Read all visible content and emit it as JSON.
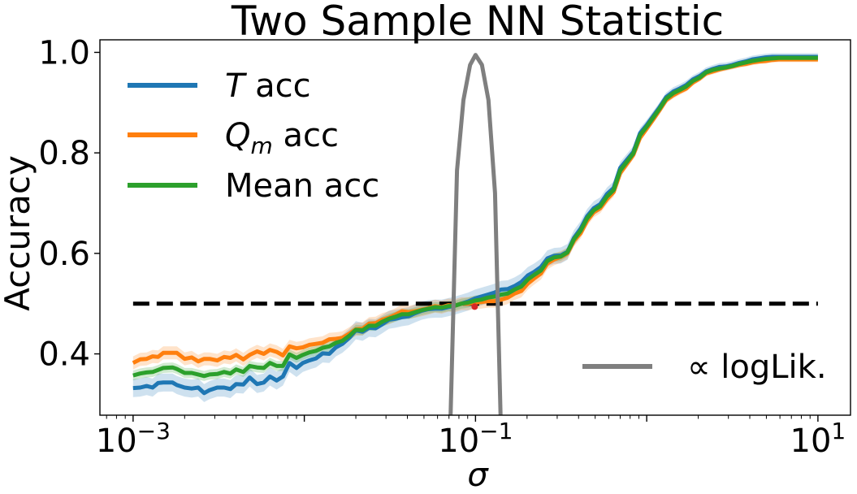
{
  "chart_data": {
    "type": "line",
    "title": "Two Sample NN Statistic",
    "xlabel": "σ",
    "ylabel": "Accuracy",
    "xscale": "log",
    "xlim": [
      0.00064,
      15.5
    ],
    "ylim": [
      0.278,
      1.025
    ],
    "x_ticks": [
      {
        "value": 0.001,
        "base": "10",
        "exp": "−3"
      },
      {
        "value": 0.1,
        "base": "10",
        "exp": "−1"
      },
      {
        "value": 10,
        "base": "10",
        "exp": "1"
      }
    ],
    "y_ticks": [
      {
        "value": 0.4,
        "label": "0.4"
      },
      {
        "value": 0.6,
        "label": "0.6"
      },
      {
        "value": 0.8,
        "label": "0.8"
      },
      {
        "value": 1.0,
        "label": "1.0"
      }
    ],
    "grid": false,
    "legend_placement": "upper-left",
    "colors": {
      "T": "#1f77b4",
      "Qm": "#ff7f0e",
      "Mean": "#2ca02c",
      "loglik": "#7f7f7f",
      "chance": "#000000",
      "marker": "#d62728"
    },
    "series": [
      {
        "name": "T acc",
        "legend": {
          "italic": "T",
          "sub": "",
          "rest": " acc"
        },
        "x": [
          0.001,
          0.0011,
          0.0012,
          0.0013,
          0.0014,
          0.0015,
          0.0017,
          0.0018,
          0.002,
          0.0022,
          0.0024,
          0.0026,
          0.0028,
          0.0031,
          0.0034,
          0.0037,
          0.004,
          0.0044,
          0.0048,
          0.0053,
          0.0058,
          0.0063,
          0.0069,
          0.0075,
          0.0082,
          0.009,
          0.0098,
          0.0107,
          0.0117,
          0.0128,
          0.014,
          0.0153,
          0.0167,
          0.0183,
          0.02,
          0.0219,
          0.0239,
          0.0261,
          0.0285,
          0.0312,
          0.0341,
          0.0372,
          0.0407,
          0.0445,
          0.0486,
          0.0531,
          0.058,
          0.0634,
          0.0693,
          0.0758,
          0.0828,
          0.0905,
          0.0989,
          0.108,
          0.118,
          0.129,
          0.141,
          0.154,
          0.169,
          0.185,
          0.202,
          0.22,
          0.241,
          0.263,
          0.288,
          0.315,
          0.344,
          0.376,
          0.411,
          0.449,
          0.491,
          0.536,
          0.586,
          0.641,
          0.7,
          0.765,
          0.836,
          0.914,
          0.999,
          1.09,
          1.19,
          1.3,
          1.43,
          1.56,
          1.7,
          1.86,
          2.04,
          2.22,
          2.43,
          2.66,
          2.9,
          3.17,
          3.47,
          3.79,
          4.14,
          4.53,
          4.95,
          5.41,
          5.91,
          6.46,
          7.06,
          7.72,
          8.43,
          9.22,
          10.0
        ],
        "values": [
          0.332,
          0.333,
          0.336,
          0.333,
          0.342,
          0.343,
          0.343,
          0.338,
          0.333,
          0.331,
          0.333,
          0.322,
          0.328,
          0.333,
          0.333,
          0.33,
          0.34,
          0.339,
          0.353,
          0.34,
          0.343,
          0.355,
          0.347,
          0.355,
          0.382,
          0.372,
          0.382,
          0.387,
          0.391,
          0.401,
          0.4,
          0.413,
          0.42,
          0.432,
          0.447,
          0.444,
          0.452,
          0.451,
          0.459,
          0.468,
          0.47,
          0.473,
          0.475,
          0.481,
          0.486,
          0.489,
          0.49,
          0.49,
          0.493,
          0.496,
          0.5,
          0.504,
          0.51,
          0.514,
          0.518,
          0.522,
          0.528,
          0.529,
          0.535,
          0.543,
          0.556,
          0.563,
          0.573,
          0.59,
          0.595,
          0.596,
          0.603,
          0.631,
          0.649,
          0.674,
          0.69,
          0.698,
          0.718,
          0.73,
          0.77,
          0.786,
          0.802,
          0.839,
          0.855,
          0.873,
          0.891,
          0.911,
          0.922,
          0.928,
          0.935,
          0.946,
          0.953,
          0.962,
          0.967,
          0.971,
          0.972,
          0.975,
          0.979,
          0.982,
          0.986,
          0.988,
          0.99,
          0.991,
          0.991,
          0.991,
          0.991,
          0.991,
          0.991,
          0.991,
          0.991
        ]
      },
      {
        "name": "Qm acc",
        "legend": {
          "italic": "Q",
          "sub": "m",
          "rest": " acc"
        },
        "x": [
          0.001,
          0.0011,
          0.0012,
          0.0013,
          0.0014,
          0.0015,
          0.0017,
          0.0018,
          0.002,
          0.0022,
          0.0024,
          0.0026,
          0.0028,
          0.0031,
          0.0034,
          0.0037,
          0.004,
          0.0044,
          0.0048,
          0.0053,
          0.0058,
          0.0063,
          0.0069,
          0.0075,
          0.0082,
          0.009,
          0.0098,
          0.0107,
          0.0117,
          0.0128,
          0.014,
          0.0153,
          0.0167,
          0.0183,
          0.02,
          0.0219,
          0.0239,
          0.0261,
          0.0285,
          0.0312,
          0.0341,
          0.0372,
          0.0407,
          0.0445,
          0.0486,
          0.0531,
          0.058,
          0.0634,
          0.0693,
          0.0758,
          0.0828,
          0.0905,
          0.0989,
          0.108,
          0.118,
          0.129,
          0.141,
          0.154,
          0.169,
          0.185,
          0.202,
          0.22,
          0.241,
          0.263,
          0.288,
          0.315,
          0.344,
          0.376,
          0.411,
          0.449,
          0.491,
          0.536,
          0.586,
          0.641,
          0.7,
          0.765,
          0.836,
          0.914,
          0.999,
          1.09,
          1.19,
          1.3,
          1.43,
          1.56,
          1.7,
          1.86,
          2.04,
          2.22,
          2.43,
          2.66,
          2.9,
          3.17,
          3.47,
          3.79,
          4.14,
          4.53,
          4.95,
          5.41,
          5.91,
          6.46,
          7.06,
          7.72,
          8.43,
          9.22,
          10.0
        ],
        "values": [
          0.382,
          0.389,
          0.39,
          0.395,
          0.394,
          0.402,
          0.402,
          0.402,
          0.39,
          0.393,
          0.385,
          0.39,
          0.39,
          0.387,
          0.394,
          0.392,
          0.398,
          0.389,
          0.398,
          0.405,
          0.4,
          0.408,
          0.404,
          0.397,
          0.415,
          0.411,
          0.413,
          0.418,
          0.42,
          0.422,
          0.429,
          0.43,
          0.432,
          0.44,
          0.449,
          0.45,
          0.46,
          0.461,
          0.468,
          0.472,
          0.478,
          0.485,
          0.483,
          0.485,
          0.488,
          0.491,
          0.495,
          0.493,
          0.497,
          0.496,
          0.5,
          0.5,
          0.502,
          0.503,
          0.505,
          0.505,
          0.508,
          0.512,
          0.52,
          0.525,
          0.54,
          0.55,
          0.56,
          0.58,
          0.588,
          0.593,
          0.6,
          0.625,
          0.64,
          0.665,
          0.682,
          0.69,
          0.708,
          0.722,
          0.76,
          0.778,
          0.796,
          0.83,
          0.848,
          0.866,
          0.885,
          0.905,
          0.915,
          0.922,
          0.928,
          0.94,
          0.948,
          0.958,
          0.962,
          0.966,
          0.969,
          0.972,
          0.975,
          0.977,
          0.98,
          0.982,
          0.983,
          0.985,
          0.986,
          0.986,
          0.986,
          0.986,
          0.986,
          0.986,
          0.986
        ]
      },
      {
        "name": "Mean acc",
        "legend": {
          "italic": "",
          "sub": "",
          "rest": "Mean acc"
        },
        "x": [
          0.001,
          0.0011,
          0.0012,
          0.0013,
          0.0014,
          0.0015,
          0.0017,
          0.0018,
          0.002,
          0.0022,
          0.0024,
          0.0026,
          0.0028,
          0.0031,
          0.0034,
          0.0037,
          0.004,
          0.0044,
          0.0048,
          0.0053,
          0.0058,
          0.0063,
          0.0069,
          0.0075,
          0.0082,
          0.009,
          0.0098,
          0.0107,
          0.0117,
          0.0128,
          0.014,
          0.0153,
          0.0167,
          0.0183,
          0.02,
          0.0219,
          0.0239,
          0.0261,
          0.0285,
          0.0312,
          0.0341,
          0.0372,
          0.0407,
          0.0445,
          0.0486,
          0.0531,
          0.058,
          0.0634,
          0.0693,
          0.0758,
          0.0828,
          0.0905,
          0.0989,
          0.108,
          0.118,
          0.129,
          0.141,
          0.154,
          0.169,
          0.185,
          0.202,
          0.22,
          0.241,
          0.263,
          0.288,
          0.315,
          0.344,
          0.376,
          0.411,
          0.449,
          0.491,
          0.536,
          0.586,
          0.641,
          0.7,
          0.765,
          0.836,
          0.914,
          0.999,
          1.09,
          1.19,
          1.3,
          1.43,
          1.56,
          1.7,
          1.86,
          2.04,
          2.22,
          2.43,
          2.66,
          2.9,
          3.17,
          3.47,
          3.79,
          4.14,
          4.53,
          4.95,
          5.41,
          5.91,
          6.46,
          7.06,
          7.72,
          8.43,
          9.22,
          10.0
        ],
        "values": [
          0.357,
          0.361,
          0.363,
          0.364,
          0.368,
          0.372,
          0.373,
          0.37,
          0.362,
          0.362,
          0.359,
          0.356,
          0.359,
          0.36,
          0.364,
          0.361,
          0.369,
          0.364,
          0.376,
          0.373,
          0.372,
          0.382,
          0.376,
          0.376,
          0.399,
          0.392,
          0.398,
          0.403,
          0.406,
          0.412,
          0.415,
          0.422,
          0.426,
          0.436,
          0.448,
          0.447,
          0.456,
          0.456,
          0.464,
          0.47,
          0.474,
          0.479,
          0.479,
          0.483,
          0.487,
          0.49,
          0.493,
          0.492,
          0.495,
          0.496,
          0.5,
          0.502,
          0.506,
          0.508,
          0.512,
          0.514,
          0.518,
          0.52,
          0.528,
          0.534,
          0.548,
          0.557,
          0.566,
          0.585,
          0.592,
          0.594,
          0.602,
          0.628,
          0.645,
          0.67,
          0.686,
          0.694,
          0.713,
          0.726,
          0.765,
          0.782,
          0.799,
          0.835,
          0.852,
          0.87,
          0.888,
          0.908,
          0.919,
          0.925,
          0.932,
          0.943,
          0.95,
          0.96,
          0.965,
          0.968,
          0.97,
          0.973,
          0.977,
          0.98,
          0.983,
          0.985,
          0.987,
          0.988,
          0.989,
          0.989,
          0.989,
          0.989,
          0.989,
          0.989,
          0.989
        ]
      },
      {
        "name": "∝ logLik.",
        "x": [
          0.0715,
          0.078,
          0.085,
          0.093,
          0.1,
          0.109,
          0.119,
          0.13,
          0.14
        ],
        "values": [
          0.278,
          0.765,
          0.905,
          0.975,
          0.995,
          0.975,
          0.905,
          0.72,
          0.278
        ]
      }
    ],
    "chance_line": {
      "y": 0.5,
      "x_range": [
        0.001,
        10.0
      ]
    },
    "marker": {
      "x": 0.0989,
      "y": 0.494
    }
  }
}
